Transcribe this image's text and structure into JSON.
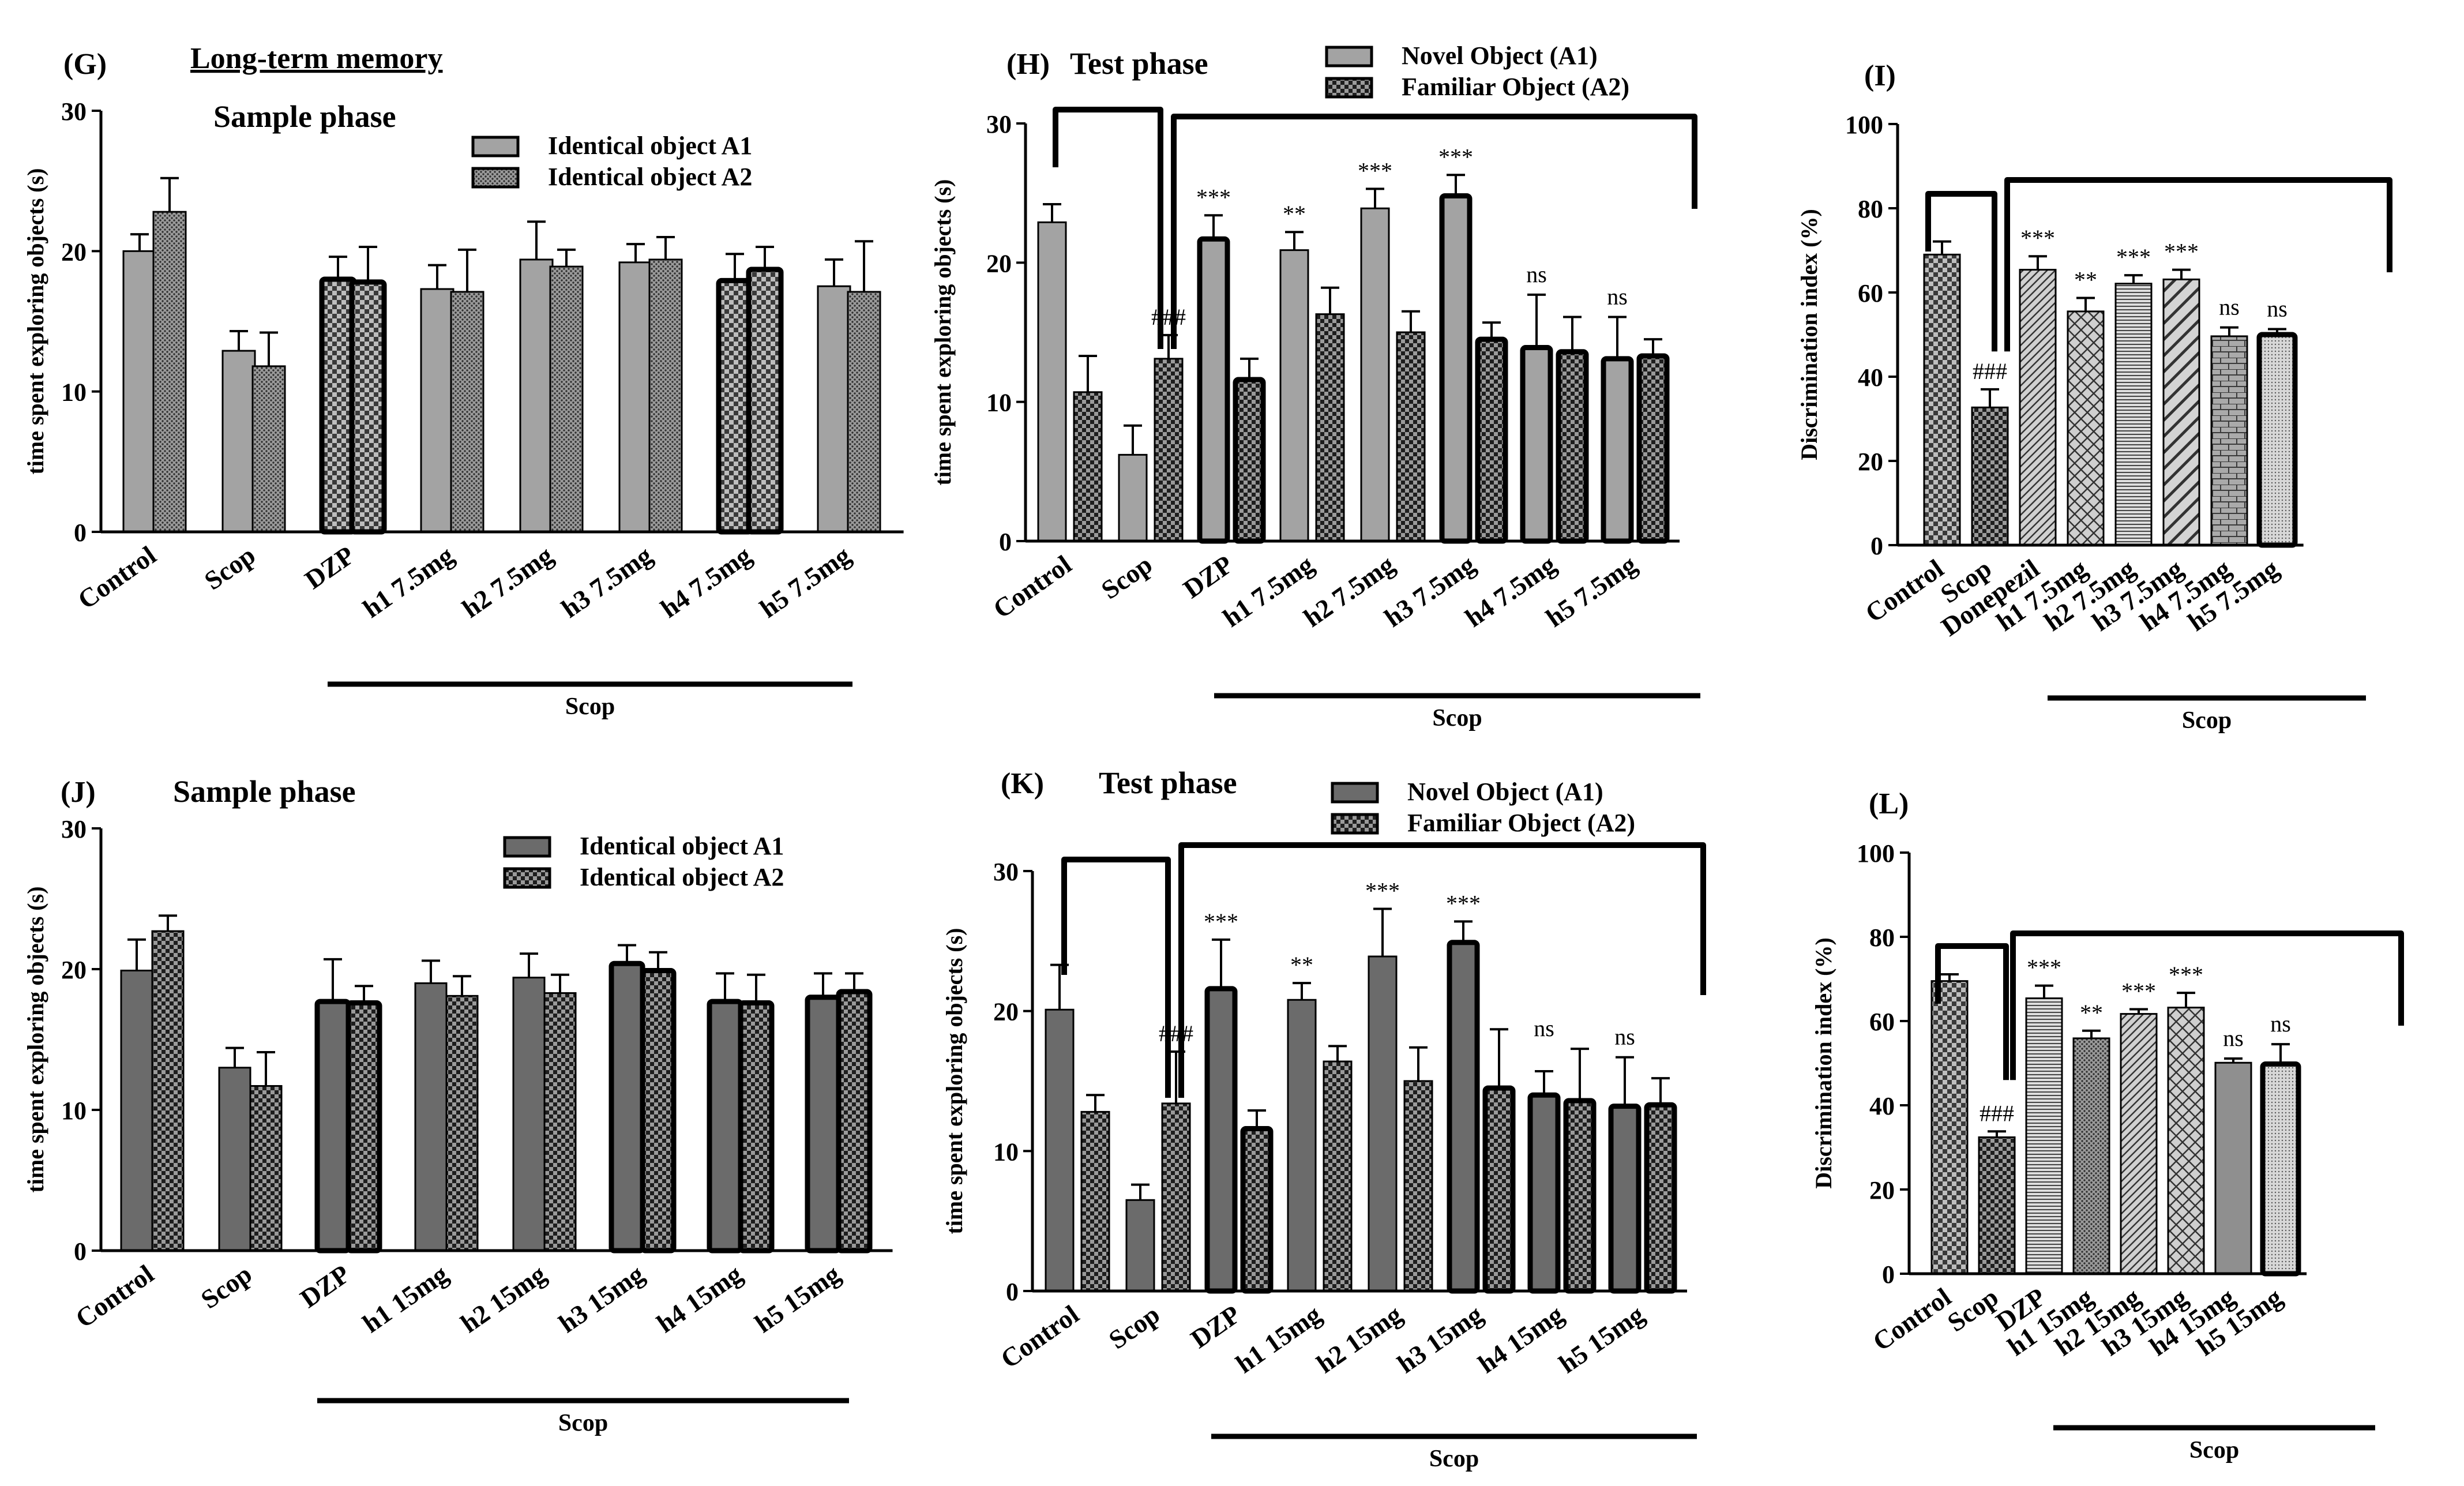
{
  "chart_data": [
    {
      "id": "G",
      "panel_label": "(G)",
      "heading": "Long-term memory",
      "title": "Sample phase",
      "type": "bar",
      "ylabel": "time spent exploring objects (s)",
      "ylim": [
        0,
        30
      ],
      "yticks": [
        "0",
        "10",
        "20",
        "30"
      ],
      "categories": [
        "Control",
        "Scop",
        "DZP",
        "h1 7.5mg",
        "h2 7.5mg",
        "h3 7.5mg",
        "h4 7.5mg",
        "h5 7.5mg"
      ],
      "group_label": "Scop",
      "legend_position": "top-right",
      "series": [
        {
          "name": "Identical object A1",
          "values": [
            20,
            12.9,
            18,
            17.3,
            19.4,
            19.2,
            17.9,
            17.5
          ],
          "errors": [
            1.2,
            1.4,
            1.6,
            1.7,
            2.7,
            1.3,
            1.9,
            1.9
          ]
        },
        {
          "name": "Identical object A2",
          "values": [
            22.8,
            11.8,
            17.8,
            17.1,
            18.9,
            19.4,
            18.7,
            17.1
          ],
          "errors": [
            2.4,
            2.4,
            2.5,
            3.0,
            1.2,
            1.6,
            1.6,
            3.6
          ]
        }
      ],
      "annotations": []
    },
    {
      "id": "H",
      "panel_label": "(H)",
      "heading": "",
      "title": "Test phase",
      "type": "bar",
      "ylabel": "time spent exploring objects (s)",
      "ylim": [
        0,
        30
      ],
      "yticks": [
        "0",
        "10",
        "20",
        "30"
      ],
      "categories": [
        "Control",
        "Scop",
        "DZP",
        "h1 7.5mg",
        "h2 7.5mg",
        "h3 7.5mg",
        "h4 7.5mg",
        "h5 7.5mg"
      ],
      "group_label": "Scop",
      "legend_position": "top-right",
      "series": [
        {
          "name": "Novel Object (A1)",
          "values": [
            22.9,
            6.2,
            21.7,
            20.9,
            23.9,
            24.8,
            13.9,
            13.1
          ],
          "errors": [
            1.3,
            2.1,
            1.7,
            1.3,
            1.4,
            1.5,
            3.8,
            3.0
          ]
        },
        {
          "name": "Familiar Object (A2)",
          "values": [
            10.7,
            13.1,
            11.6,
            16.3,
            15.0,
            14.5,
            13.6,
            13.3
          ],
          "errors": [
            2.6,
            1.7,
            1.5,
            1.9,
            1.5,
            1.2,
            2.5,
            1.2
          ]
        }
      ],
      "annotations": [
        "",
        "###",
        "***",
        "**",
        "***",
        "***",
        "ns",
        "ns"
      ]
    },
    {
      "id": "I",
      "panel_label": "(I)",
      "heading": "",
      "title": "",
      "type": "bar",
      "ylabel": "Discrimination index (%)",
      "ylim": [
        0,
        100
      ],
      "yticks": [
        "0",
        "20",
        "40",
        "60",
        "80",
        "100"
      ],
      "categories": [
        "Control",
        "Scop",
        "Donepezil",
        "h1 7.5mg",
        "h2 7.5mg",
        "h3 7.5mg",
        "h4 7.5mg",
        "h5 7.5mg"
      ],
      "group_label": "Scop",
      "legend_position": "none",
      "series": [
        {
          "name": "Discrimination index",
          "values": [
            69,
            32.7,
            65.4,
            55.5,
            62.1,
            63.1,
            49.6,
            50
          ],
          "errors": [
            3.1,
            4.3,
            3.2,
            3.2,
            2.0,
            2.3,
            2.1,
            1.3
          ]
        }
      ],
      "annotations": [
        "",
        "###",
        "***",
        "**",
        "***",
        "***",
        "ns",
        "ns"
      ]
    },
    {
      "id": "J",
      "panel_label": "(J)",
      "heading": "",
      "title": "Sample phase",
      "type": "bar",
      "ylabel": "time spent exploring objects (s)",
      "ylim": [
        0,
        30
      ],
      "yticks": [
        "0",
        "10",
        "20",
        "30"
      ],
      "categories": [
        "Control",
        "Scop",
        "DZP",
        "h1 15mg",
        "h2 15mg",
        "h3 15mg",
        "h4 15mg",
        "h5 15mg"
      ],
      "group_label": "Scop",
      "legend_position": "top-right",
      "series": [
        {
          "name": "Identical object A1",
          "values": [
            19.9,
            13.0,
            17.7,
            19.0,
            19.4,
            20.4,
            17.7,
            18.0
          ],
          "errors": [
            2.2,
            1.4,
            3.0,
            1.6,
            1.7,
            1.3,
            2.0,
            1.7
          ]
        },
        {
          "name": "Identical object A2",
          "values": [
            22.7,
            11.7,
            17.6,
            18.1,
            18.3,
            19.9,
            17.6,
            18.4
          ],
          "errors": [
            1.1,
            2.4,
            1.2,
            1.4,
            1.3,
            1.3,
            2.0,
            1.3
          ]
        }
      ],
      "annotations": []
    },
    {
      "id": "K",
      "panel_label": "(K)",
      "heading": "",
      "title": "Test phase",
      "type": "bar",
      "ylabel": "time spent exploring objects (s)",
      "ylim": [
        0,
        30
      ],
      "yticks": [
        "0",
        "10",
        "20",
        "30"
      ],
      "categories": [
        "Control",
        "Scop",
        "DZP",
        "h1 15mg",
        "h2 15mg",
        "h3 15mg",
        "h4 15mg",
        "h5 15mg"
      ],
      "group_label": "Scop",
      "legend_position": "top-right",
      "series": [
        {
          "name": "Novel Object (A1)",
          "values": [
            20.1,
            6.5,
            21.6,
            20.8,
            23.9,
            24.9,
            14.0,
            13.2
          ],
          "errors": [
            3.2,
            1.1,
            3.5,
            1.2,
            3.4,
            1.5,
            1.7,
            3.5
          ]
        },
        {
          "name": "Familiar Object (A2)",
          "values": [
            12.8,
            13.4,
            11.6,
            16.4,
            15.0,
            14.5,
            13.6,
            13.3
          ],
          "errors": [
            1.2,
            3.7,
            1.3,
            1.1,
            2.4,
            4.2,
            3.7,
            1.9
          ]
        }
      ],
      "annotations": [
        "",
        "###",
        "***",
        "**",
        "***",
        "***",
        "ns",
        "ns"
      ]
    },
    {
      "id": "L",
      "panel_label": "(L)",
      "heading": "",
      "title": "",
      "type": "bar",
      "ylabel": "Discrimination index (%)",
      "ylim": [
        0,
        100
      ],
      "yticks": [
        "0",
        "20",
        "40",
        "60",
        "80",
        "100"
      ],
      "categories": [
        "Control",
        "Scop",
        "DZP",
        "h1 15mg",
        "h2 15mg",
        "h3 15mg",
        "h4 15mg",
        "h5 15mg"
      ],
      "group_label": "Scop",
      "legend_position": "none",
      "series": [
        {
          "name": "Discrimination index",
          "values": [
            69.5,
            32.4,
            65.4,
            55.9,
            61.7,
            63.2,
            50.1,
            49.8
          ],
          "errors": [
            1.6,
            1.4,
            3.0,
            1.8,
            1.1,
            3.5,
            1.0,
            4.7
          ]
        }
      ],
      "annotations": [
        "",
        "###",
        "***",
        "**",
        "***",
        "***",
        "ns",
        "ns"
      ]
    }
  ],
  "colors": {
    "light_bar": "#a3a3a3",
    "dark_bar": "#6b6b6b",
    "ink": "#000000",
    "background": "#ffffff"
  }
}
